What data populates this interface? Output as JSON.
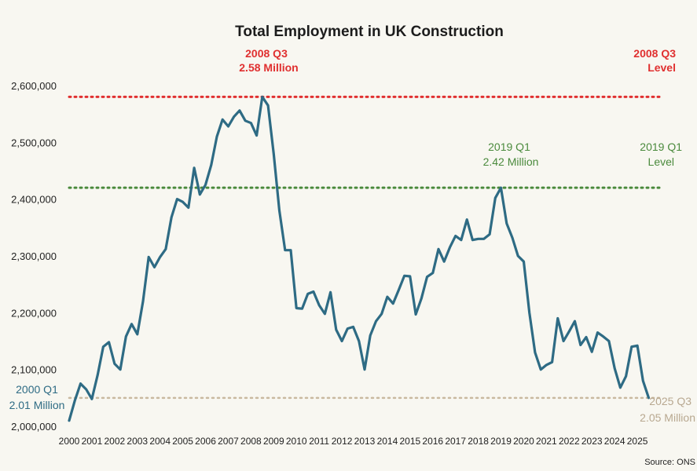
{
  "chart_data": {
    "type": "line",
    "title": "Total Employment in UK Construction",
    "source": "Source: ONS",
    "xlabel": "",
    "ylabel": "",
    "x_tick_labels": [
      "2000",
      "2001",
      "2002",
      "2003",
      "2004",
      "2005",
      "2006",
      "2007",
      "2008",
      "2009",
      "2010",
      "2011",
      "2012",
      "2013",
      "2014",
      "2015",
      "2016",
      "2017",
      "2018",
      "2019",
      "2020",
      "2021",
      "2022",
      "2023",
      "2024",
      "2025"
    ],
    "y_tick_labels": [
      "2,000,000",
      "2,100,000",
      "2,200,000",
      "2,300,000",
      "2,400,000",
      "2,500,000",
      "2,600,000"
    ],
    "y_ticks": [
      2000000,
      2100000,
      2200000,
      2300000,
      2400000,
      2500000,
      2600000
    ],
    "xlim": [
      2000.0,
      2026.0
    ],
    "ylim": [
      2000000,
      2640000
    ],
    "grid": false,
    "colors": {
      "line": "#2e6b84",
      "peak_2008": "#e03030",
      "peak_2019": "#4a8a3c",
      "level_2025": "#c9b9a0",
      "start_label": "#2e6b84",
      "end_label": "#b8a890"
    },
    "series": [
      {
        "x": [
          2000.0,
          2000.25,
          2000.5,
          2000.75,
          2001.0,
          2001.25,
          2001.5,
          2001.75,
          2002.0,
          2002.25,
          2002.5,
          2002.75,
          2003.0,
          2003.25,
          2003.5,
          2003.75,
          2004.0,
          2004.25,
          2004.5,
          2004.75,
          2005.0,
          2005.25,
          2005.5,
          2005.75,
          2006.0,
          2006.25,
          2006.5,
          2006.75,
          2007.0,
          2007.25,
          2007.5,
          2007.75,
          2008.0,
          2008.25,
          2008.5,
          2008.75,
          2009.0,
          2009.25,
          2009.5,
          2009.75,
          2010.0,
          2010.25,
          2010.5,
          2010.75,
          2011.0,
          2011.25,
          2011.5,
          2011.75,
          2012.0,
          2012.25,
          2012.5,
          2012.75,
          2013.0,
          2013.25,
          2013.5,
          2013.75,
          2014.0,
          2014.25,
          2014.5,
          2014.75,
          2015.0,
          2015.25,
          2015.5,
          2015.75,
          2016.0,
          2016.25,
          2016.5,
          2016.75,
          2017.0,
          2017.25,
          2017.5,
          2017.75,
          2018.0,
          2018.25,
          2018.5,
          2018.75,
          2019.0,
          2019.25,
          2019.5,
          2019.75,
          2020.0,
          2020.25,
          2020.5,
          2020.75,
          2021.0,
          2021.25,
          2021.5,
          2021.75,
          2022.0,
          2022.25,
          2022.5,
          2022.75,
          2023.0,
          2023.25,
          2023.5,
          2023.75,
          2024.0,
          2024.25,
          2024.5,
          2024.75,
          2025.0,
          2025.25,
          2025.5
        ],
        "values": [
          2010000,
          2045000,
          2075000,
          2065000,
          2048000,
          2090000,
          2140000,
          2148000,
          2110000,
          2100000,
          2158000,
          2180000,
          2162000,
          2220000,
          2298000,
          2280000,
          2298000,
          2312000,
          2368000,
          2400000,
          2395000,
          2385000,
          2455000,
          2408000,
          2425000,
          2460000,
          2510000,
          2540000,
          2528000,
          2545000,
          2556000,
          2538000,
          2534000,
          2512000,
          2580000,
          2565000,
          2480000,
          2380000,
          2310000,
          2310000,
          2208000,
          2207000,
          2233000,
          2237000,
          2213000,
          2198000,
          2236000,
          2170000,
          2150000,
          2172000,
          2175000,
          2150000,
          2100000,
          2160000,
          2185000,
          2198000,
          2228000,
          2216000,
          2240000,
          2265000,
          2264000,
          2197000,
          2225000,
          2263000,
          2270000,
          2312000,
          2290000,
          2315000,
          2335000,
          2328000,
          2364000,
          2328000,
          2330000,
          2330000,
          2338000,
          2402000,
          2420000,
          2357000,
          2332000,
          2300000,
          2290000,
          2200000,
          2130000,
          2100000,
          2108000,
          2113000,
          2190000,
          2150000,
          2167000,
          2185000,
          2143000,
          2157000,
          2131000,
          2165000,
          2158000,
          2150000,
          2102000,
          2068000,
          2088000,
          2140000,
          2142000,
          2080000,
          2050000
        ]
      }
    ],
    "annotations": {
      "peak_2008": {
        "label_line1": "2008 Q3",
        "label_line2": "2.58 Million",
        "right_line1": "2008 Q3",
        "right_line2": "Level",
        "value": 2580000
      },
      "peak_2019": {
        "label_line1": "2019 Q1",
        "label_line2": "2.42 Million",
        "right_line1": "2019 Q1",
        "right_line2": "Level",
        "value": 2420000
      },
      "start_2000": {
        "label_line1": "2000 Q1",
        "label_line2": "2.01 Million"
      },
      "end_2025": {
        "label_line1": "2025 Q3",
        "label_line2": "2.05 Million",
        "value": 2050000
      }
    }
  }
}
